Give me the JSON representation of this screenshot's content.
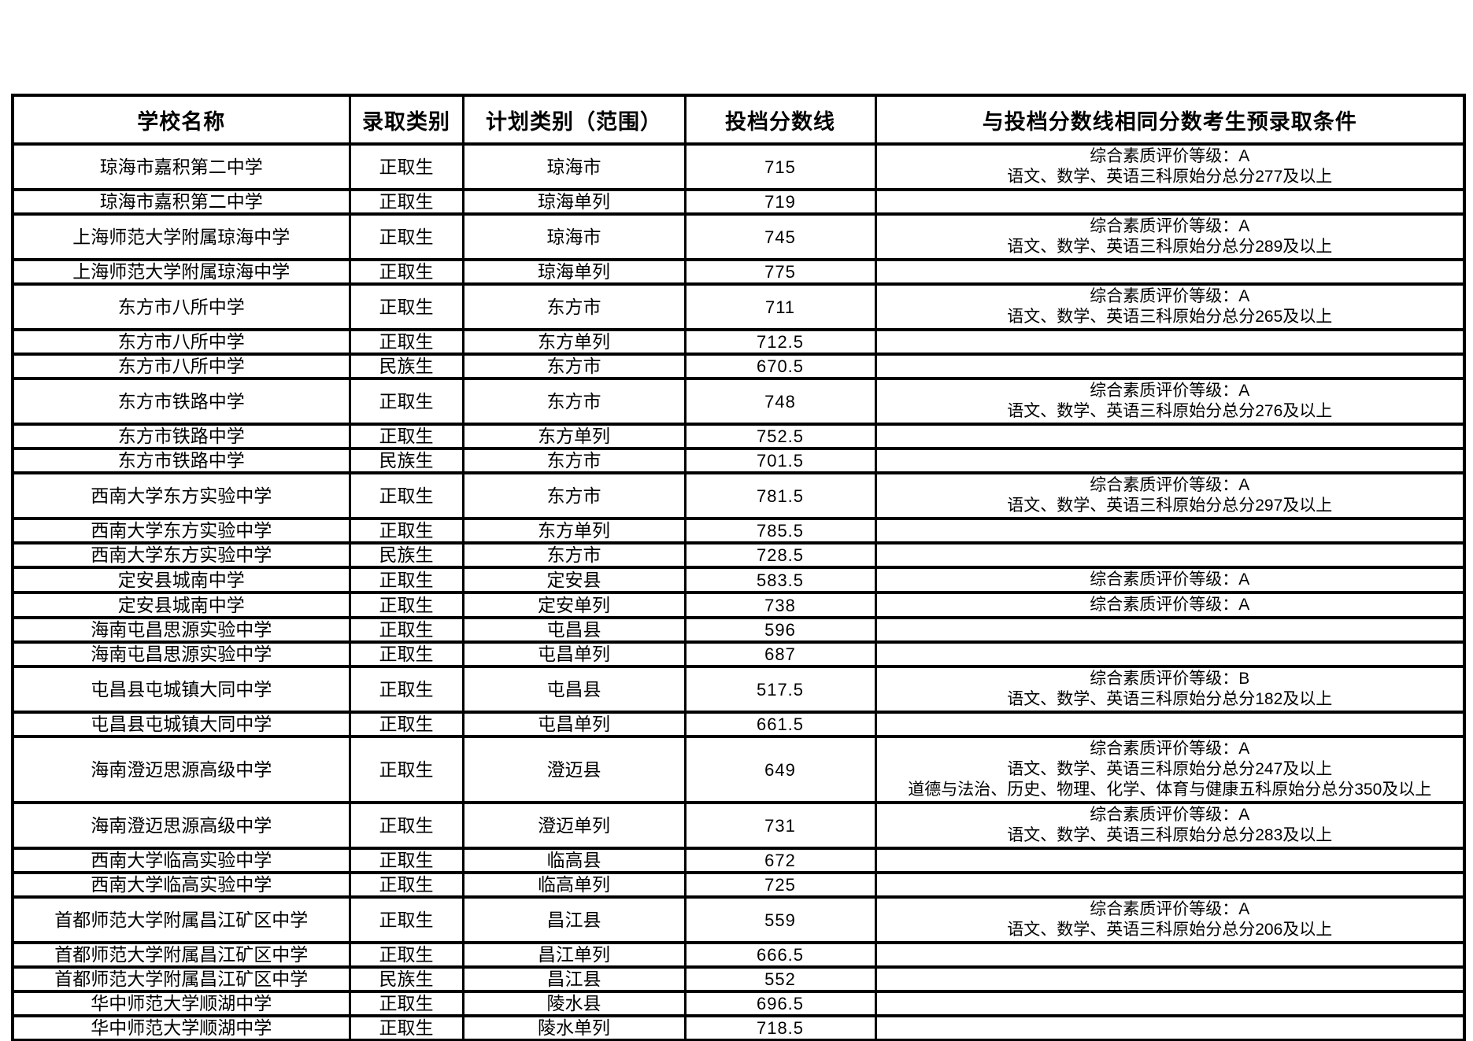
{
  "table": {
    "headers": [
      "学校名称",
      "录取类别",
      "计划类别（范围）",
      "投档分数线",
      "与投档分数线相同分数考生预录取条件"
    ],
    "rows": [
      {
        "school": "琼海市嘉积第二中学",
        "category": "正取生",
        "plan": "琼海市",
        "score": "715",
        "conditions": [
          "综合素质评价等级：A",
          "语文、数学、英语三科原始分总分277及以上"
        ]
      },
      {
        "school": "琼海市嘉积第二中学",
        "category": "正取生",
        "plan": "琼海单列",
        "score": "719",
        "conditions": []
      },
      {
        "school": "上海师范大学附属琼海中学",
        "category": "正取生",
        "plan": "琼海市",
        "score": "745",
        "conditions": [
          "综合素质评价等级：A",
          "语文、数学、英语三科原始分总分289及以上"
        ]
      },
      {
        "school": "上海师范大学附属琼海中学",
        "category": "正取生",
        "plan": "琼海单列",
        "score": "775",
        "conditions": []
      },
      {
        "school": "东方市八所中学",
        "category": "正取生",
        "plan": "东方市",
        "score": "711",
        "conditions": [
          "综合素质评价等级：A",
          "语文、数学、英语三科原始分总分265及以上"
        ]
      },
      {
        "school": "东方市八所中学",
        "category": "正取生",
        "plan": "东方单列",
        "score": "712.5",
        "conditions": []
      },
      {
        "school": "东方市八所中学",
        "category": "民族生",
        "plan": "东方市",
        "score": "670.5",
        "conditions": []
      },
      {
        "school": "东方市铁路中学",
        "category": "正取生",
        "plan": "东方市",
        "score": "748",
        "conditions": [
          "综合素质评价等级：A",
          "语文、数学、英语三科原始分总分276及以上"
        ]
      },
      {
        "school": "东方市铁路中学",
        "category": "正取生",
        "plan": "东方单列",
        "score": "752.5",
        "conditions": []
      },
      {
        "school": "东方市铁路中学",
        "category": "民族生",
        "plan": "东方市",
        "score": "701.5",
        "conditions": []
      },
      {
        "school": "西南大学东方实验中学",
        "category": "正取生",
        "plan": "东方市",
        "score": "781.5",
        "conditions": [
          "综合素质评价等级：A",
          "语文、数学、英语三科原始分总分297及以上"
        ]
      },
      {
        "school": "西南大学东方实验中学",
        "category": "正取生",
        "plan": "东方单列",
        "score": "785.5",
        "conditions": []
      },
      {
        "school": "西南大学东方实验中学",
        "category": "民族生",
        "plan": "东方市",
        "score": "728.5",
        "conditions": []
      },
      {
        "school": "定安县城南中学",
        "category": "正取生",
        "plan": "定安县",
        "score": "583.5",
        "conditions": [
          "综合素质评价等级：A"
        ]
      },
      {
        "school": "定安县城南中学",
        "category": "正取生",
        "plan": "定安单列",
        "score": "738",
        "conditions": [
          "综合素质评价等级：A"
        ]
      },
      {
        "school": "海南屯昌思源实验中学",
        "category": "正取生",
        "plan": "屯昌县",
        "score": "596",
        "conditions": []
      },
      {
        "school": "海南屯昌思源实验中学",
        "category": "正取生",
        "plan": "屯昌单列",
        "score": "687",
        "conditions": []
      },
      {
        "school": "屯昌县屯城镇大同中学",
        "category": "正取生",
        "plan": "屯昌县",
        "score": "517.5",
        "conditions": [
          "综合素质评价等级：B",
          "语文、数学、英语三科原始分总分182及以上"
        ]
      },
      {
        "school": "屯昌县屯城镇大同中学",
        "category": "正取生",
        "plan": "屯昌单列",
        "score": "661.5",
        "conditions": []
      },
      {
        "school": "海南澄迈思源高级中学",
        "category": "正取生",
        "plan": "澄迈县",
        "score": "649",
        "conditions": [
          "综合素质评价等级：A",
          "语文、数学、英语三科原始分总分247及以上",
          "道德与法治、历史、物理、化学、体育与健康五科原始分总分350及以上"
        ]
      },
      {
        "school": "海南澄迈思源高级中学",
        "category": "正取生",
        "plan": "澄迈单列",
        "score": "731",
        "conditions": [
          "综合素质评价等级：A",
          "语文、数学、英语三科原始分总分283及以上"
        ]
      },
      {
        "school": "西南大学临高实验中学",
        "category": "正取生",
        "plan": "临高县",
        "score": "672",
        "conditions": []
      },
      {
        "school": "西南大学临高实验中学",
        "category": "正取生",
        "plan": "临高单列",
        "score": "725",
        "conditions": []
      },
      {
        "school": "首都师范大学附属昌江矿区中学",
        "category": "正取生",
        "plan": "昌江县",
        "score": "559",
        "conditions": [
          "综合素质评价等级：A",
          "语文、数学、英语三科原始分总分206及以上"
        ]
      },
      {
        "school": "首都师范大学附属昌江矿区中学",
        "category": "正取生",
        "plan": "昌江单列",
        "score": "666.5",
        "conditions": []
      },
      {
        "school": "首都师范大学附属昌江矿区中学",
        "category": "民族生",
        "plan": "昌江县",
        "score": "552",
        "conditions": []
      },
      {
        "school": "华中师范大学顺湖中学",
        "category": "正取生",
        "plan": "陵水县",
        "score": "696.5",
        "conditions": []
      },
      {
        "school": "华中师范大学顺湖中学",
        "category": "正取生",
        "plan": "陵水单列",
        "score": "718.5",
        "conditions": []
      }
    ]
  }
}
